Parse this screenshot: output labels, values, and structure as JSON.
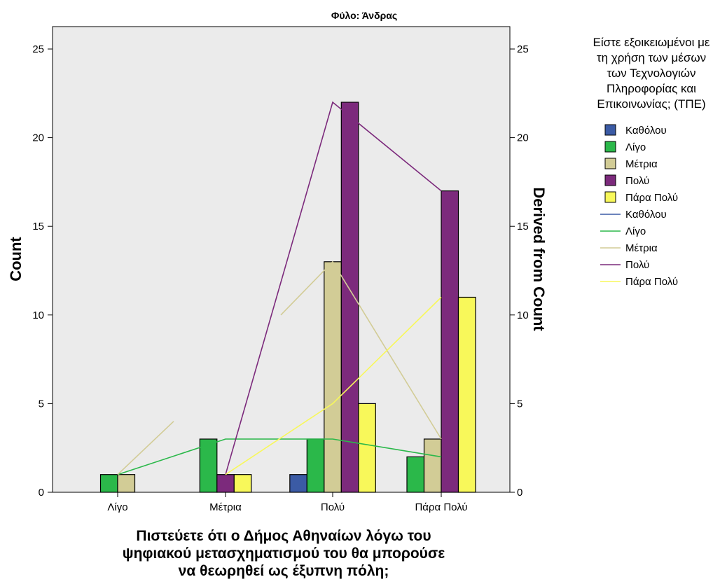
{
  "chart_data": {
    "type": "bar",
    "title": "Φύλο: Άνδρας",
    "categories": [
      "Λίγο",
      "Μέτρια",
      "Πολύ",
      "Πάρα Πολύ"
    ],
    "xlabel_lines": [
      "Πιστεύετε ότι ο Δήμος Αθηναίων λόγω του",
      "ψηφιακού μετασχηματισμού του  θα μπορούσε",
      "να θεωρηθεί ως έξυπνη πόλη;"
    ],
    "ylabel": "Count",
    "ylabel_right": "Derived from Count",
    "ylim": [
      0,
      25
    ],
    "yticks": [
      0,
      5,
      10,
      15,
      20,
      25
    ],
    "legend_title_lines": [
      "Είστε εξοικειωμένοι με",
      "τη χρήση των μέσων",
      "των Τεχνολογιών",
      "Πληροφορίας και",
      "Επικοινωνίας; (ΤΠΕ)"
    ],
    "legend_position": "right",
    "series": [
      {
        "name": "Καθόλου",
        "color": "#3b5ba5",
        "values": [
          null,
          null,
          1,
          null
        ]
      },
      {
        "name": "Λίγο",
        "color": "#2bb84a",
        "values": [
          1,
          3,
          3,
          2
        ]
      },
      {
        "name": "Μέτρια",
        "color": "#d2cc96",
        "values": [
          1,
          null,
          13,
          3
        ]
      },
      {
        "name": "Πολύ",
        "color": "#7c2a7c",
        "values": [
          null,
          1,
          22,
          17
        ]
      },
      {
        "name": "Πάρα Πολύ",
        "color": "#f8f85a",
        "values": [
          null,
          1,
          5,
          11
        ]
      }
    ],
    "line_series": [
      {
        "name": "Καθόλου",
        "color": "#3b5ba5",
        "points": []
      },
      {
        "name": "Λίγο",
        "color": "#2bb84a",
        "points": [
          {
            "x": "Λίγο",
            "y": 1
          },
          {
            "x": "Μέτρια",
            "y": 3
          },
          {
            "x": "Πολύ",
            "y": 3
          },
          {
            "x": "Πάρα Πολύ",
            "y": 2
          }
        ]
      },
      {
        "name": "Μέτρια",
        "color": "#d2cc96",
        "points": [
          {
            "x": "Λίγο",
            "y": 1
          },
          {
            "x": "Λίγο+",
            "y": 4
          }
        ],
        "points2": [
          {
            "x": "Μέτρια+",
            "y": 10
          },
          {
            "x": "Πολύ",
            "y": 13
          },
          {
            "x": "Πάρα Πολύ",
            "y": 3
          }
        ]
      },
      {
        "name": "Πολύ",
        "color": "#7c2a7c",
        "points": [
          {
            "x": "Μέτρια",
            "y": 1
          },
          {
            "x": "Πολύ",
            "y": 22
          },
          {
            "x": "Πάρα Πολύ",
            "y": 17
          }
        ]
      },
      {
        "name": "Πάρα Πολύ",
        "color": "#f8f85a",
        "points": [
          {
            "x": "Μέτρια",
            "y": 1
          },
          {
            "x": "Πολύ",
            "y": 5
          },
          {
            "x": "Πάρα Πολύ",
            "y": 11
          }
        ]
      }
    ],
    "grid": false
  },
  "colors": {
    "plot_background": "#ebebeb",
    "bar_stroke": "#000000"
  }
}
